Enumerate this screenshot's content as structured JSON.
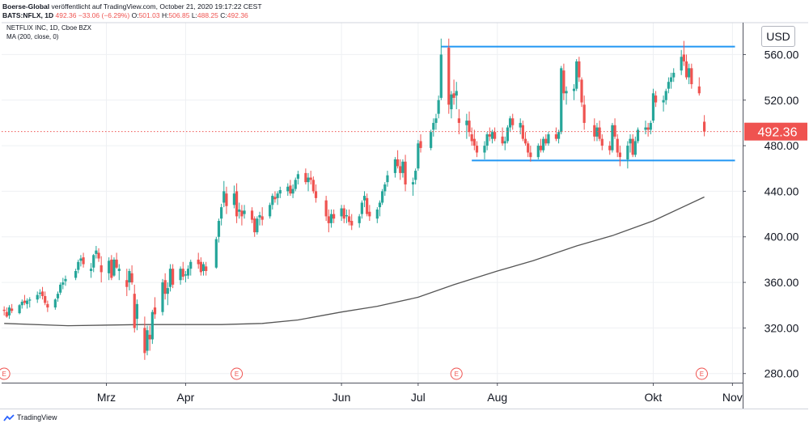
{
  "header": {
    "line1": "Boerse-Global veröffentlicht auf TradingView.com, October 21, 2020 19:17:22 CEST",
    "line1_user": "Boerse-Global",
    "line1_rest": " veröffentlicht auf TradingView.com, October 21, 2020 19:17:22 CEST",
    "symbol": "BATS:NFLX, 1D",
    "last": "492.36",
    "change": "−33.06 (−6.29%)",
    "o_label": "O:",
    "o_val": "501.03",
    "h_label": "H:",
    "h_val": "506.85",
    "l_label": "L:",
    "l_val": "488.25",
    "c_label": "C:",
    "c_val": "492.36"
  },
  "legend": {
    "series": "NETFLIX INC, 1D, Cboe BZX",
    "ma": "MA (200, close, 0)"
  },
  "currency": "USD",
  "footer": {
    "brand": "TradingView"
  },
  "colors": {
    "up": "#26a69a",
    "down": "#ef5350",
    "ma": "#555555",
    "line": "#2196f3",
    "grid": "#eef0f3"
  },
  "chart_data": {
    "type": "candlestick",
    "y_ticks": [
      "560.00",
      "520.00",
      "480.00",
      "440.00",
      "400.00",
      "360.00",
      "320.00",
      "280.00"
    ],
    "y_tick_values": [
      560,
      520,
      480,
      440,
      400,
      360,
      320,
      280
    ],
    "ylim": [
      272,
      588
    ],
    "x_labels": [
      "Mrz",
      "Apr",
      "Jun",
      "Jul",
      "Aug",
      "Okt",
      "Nov"
    ],
    "x_label_dates": [
      "2020-03-01",
      "2020-04-01",
      "2020-06-01",
      "2020-07-01",
      "2020-08-01",
      "2020-10-01",
      "2020-11-01"
    ],
    "xlim": [
      "2020-01-20",
      "2020-11-05"
    ],
    "last_price": 492.36,
    "last_price_label": "492.36",
    "resistance": {
      "value": 567,
      "from": "2020-07-10",
      "to": "2020-11-02"
    },
    "support": {
      "value": 467,
      "from": "2020-07-22",
      "to": "2020-11-02"
    },
    "earnings_markers": {
      "label": "E",
      "dates": [
        "2020-01-21",
        "2020-04-21",
        "2020-07-16",
        "2020-10-20"
      ]
    },
    "candles_ohlc": [
      [
        "2020-01-21",
        336,
        339,
        331,
        335
      ],
      [
        "2020-01-22",
        334,
        338,
        329,
        330
      ],
      [
        "2020-01-23",
        331,
        340,
        328,
        338
      ],
      [
        "2020-01-24",
        337,
        341,
        333,
        335
      ],
      [
        "2020-01-27",
        333,
        341,
        332,
        340
      ],
      [
        "2020-01-28",
        340,
        345,
        337,
        343
      ],
      [
        "2020-01-29",
        344,
        349,
        340,
        342
      ],
      [
        "2020-01-30",
        341,
        346,
        337,
        344
      ],
      [
        "2020-01-31",
        344,
        347,
        338,
        345
      ],
      [
        "2020-02-03",
        345,
        352,
        342,
        349
      ],
      [
        "2020-02-04",
        350,
        354,
        346,
        351
      ],
      [
        "2020-02-05",
        352,
        356,
        345,
        348
      ],
      [
        "2020-02-06",
        348,
        352,
        340,
        342
      ],
      [
        "2020-02-07",
        341,
        344,
        334,
        338
      ],
      [
        "2020-02-10",
        338,
        346,
        336,
        345
      ],
      [
        "2020-02-11",
        346,
        352,
        343,
        350
      ],
      [
        "2020-02-12",
        351,
        360,
        349,
        358
      ],
      [
        "2020-02-13",
        358,
        364,
        354,
        360
      ],
      [
        "2020-02-14",
        361,
        366,
        357,
        363
      ],
      [
        "2020-02-18",
        364,
        372,
        362,
        370
      ],
      [
        "2020-02-19",
        371,
        380,
        368,
        378
      ],
      [
        "2020-02-20",
        379,
        384,
        374,
        381
      ],
      [
        "2020-02-21",
        382,
        386,
        373,
        376
      ],
      [
        "2020-02-24",
        370,
        377,
        364,
        372
      ],
      [
        "2020-02-25",
        373,
        385,
        369,
        384
      ],
      [
        "2020-02-26",
        385,
        392,
        381,
        388
      ],
      [
        "2020-02-27",
        386,
        390,
        378,
        381
      ],
      [
        "2020-02-28",
        375,
        383,
        360,
        369
      ],
      [
        "2020-03-02",
        368,
        382,
        362,
        379
      ],
      [
        "2020-03-03",
        380,
        384,
        362,
        364
      ],
      [
        "2020-03-04",
        366,
        382,
        365,
        380
      ],
      [
        "2020-03-05",
        380,
        386,
        372,
        373
      ],
      [
        "2020-03-06",
        370,
        376,
        362,
        372
      ],
      [
        "2020-03-09",
        362,
        372,
        348,
        356
      ],
      [
        "2020-03-10",
        360,
        372,
        353,
        370
      ],
      [
        "2020-03-11",
        368,
        375,
        358,
        360
      ],
      [
        "2020-03-12",
        350,
        358,
        316,
        320
      ],
      [
        "2020-03-13",
        328,
        345,
        318,
        341
      ],
      [
        "2020-03-16",
        320,
        330,
        292,
        298
      ],
      [
        "2020-03-17",
        300,
        322,
        296,
        318
      ],
      [
        "2020-03-18",
        314,
        322,
        300,
        310
      ],
      [
        "2020-03-19",
        310,
        336,
        306,
        334
      ],
      [
        "2020-03-20",
        338,
        347,
        328,
        332
      ],
      [
        "2020-03-23",
        334,
        363,
        331,
        360
      ],
      [
        "2020-03-24",
        362,
        368,
        345,
        350
      ],
      [
        "2020-03-25",
        350,
        360,
        340,
        355
      ],
      [
        "2020-03-26",
        356,
        376,
        352,
        372
      ],
      [
        "2020-03-27",
        372,
        376,
        355,
        358
      ],
      [
        "2020-03-30",
        362,
        374,
        358,
        372
      ],
      [
        "2020-03-31",
        372,
        378,
        362,
        365
      ],
      [
        "2020-04-01",
        366,
        370,
        360,
        367
      ],
      [
        "2020-04-02",
        366,
        375,
        363,
        372
      ],
      [
        "2020-04-03",
        372,
        380,
        366,
        378
      ],
      [
        "2020-04-06",
        380,
        386,
        372,
        376
      ],
      [
        "2020-04-07",
        378,
        382,
        366,
        369
      ],
      [
        "2020-04-08",
        370,
        378,
        366,
        376
      ],
      [
        "2020-04-09",
        374,
        378,
        366,
        370
      ],
      [
        "2020-04-13",
        373,
        400,
        372,
        398
      ],
      [
        "2020-04-14",
        400,
        416,
        395,
        414
      ],
      [
        "2020-04-15",
        416,
        429,
        410,
        426
      ],
      [
        "2020-04-16",
        430,
        449,
        426,
        440
      ],
      [
        "2020-04-17",
        438,
        444,
        420,
        427
      ],
      [
        "2020-04-20",
        428,
        445,
        425,
        438
      ],
      [
        "2020-04-21",
        440,
        447,
        412,
        418
      ],
      [
        "2020-04-22",
        422,
        430,
        416,
        424
      ],
      [
        "2020-04-23",
        423,
        428,
        410,
        418
      ],
      [
        "2020-04-24",
        420,
        428,
        416,
        423
      ],
      [
        "2020-04-27",
        423,
        426,
        412,
        415
      ],
      [
        "2020-04-28",
        416,
        418,
        400,
        404
      ],
      [
        "2020-04-29",
        404,
        418,
        402,
        416
      ],
      [
        "2020-04-30",
        417,
        422,
        410,
        419
      ],
      [
        "2020-05-01",
        418,
        426,
        410,
        415
      ],
      [
        "2020-05-04",
        418,
        430,
        416,
        428
      ],
      [
        "2020-05-05",
        428,
        438,
        424,
        436
      ],
      [
        "2020-05-06",
        435,
        440,
        430,
        433
      ],
      [
        "2020-05-07",
        434,
        440,
        428,
        438
      ],
      [
        "2020-05-08",
        438,
        444,
        434,
        441
      ],
      [
        "2020-05-11",
        440,
        447,
        436,
        444
      ],
      [
        "2020-05-12",
        445,
        450,
        436,
        438
      ],
      [
        "2020-05-13",
        438,
        446,
        434,
        442
      ],
      [
        "2020-05-14",
        442,
        452,
        440,
        450
      ],
      [
        "2020-05-15",
        451,
        458,
        446,
        455
      ],
      [
        "2020-05-18",
        456,
        460,
        446,
        448
      ],
      [
        "2020-05-19",
        448,
        456,
        440,
        452
      ],
      [
        "2020-05-20",
        452,
        458,
        446,
        450
      ],
      [
        "2020-05-21",
        450,
        453,
        438,
        440
      ],
      [
        "2020-05-22",
        440,
        446,
        430,
        434
      ],
      [
        "2020-05-26",
        432,
        436,
        414,
        418
      ],
      [
        "2020-05-27",
        418,
        424,
        404,
        412
      ],
      [
        "2020-05-28",
        412,
        424,
        408,
        420
      ],
      [
        "2020-05-29",
        420,
        424,
        412,
        416
      ],
      [
        "2020-06-01",
        418,
        428,
        414,
        425
      ],
      [
        "2020-06-02",
        425,
        428,
        412,
        416
      ],
      [
        "2020-06-03",
        418,
        424,
        412,
        419
      ],
      [
        "2020-06-04",
        418,
        424,
        410,
        413
      ],
      [
        "2020-06-05",
        414,
        420,
        406,
        410
      ],
      [
        "2020-06-08",
        412,
        420,
        408,
        418
      ],
      [
        "2020-06-09",
        420,
        432,
        416,
        430
      ],
      [
        "2020-06-10",
        432,
        440,
        426,
        436
      ],
      [
        "2020-06-11",
        434,
        438,
        418,
        420
      ],
      [
        "2020-06-12",
        422,
        428,
        414,
        418
      ],
      [
        "2020-06-15",
        416,
        426,
        412,
        424
      ],
      [
        "2020-06-16",
        426,
        432,
        418,
        430
      ],
      [
        "2020-06-17",
        430,
        442,
        428,
        440
      ],
      [
        "2020-06-18",
        440,
        448,
        436,
        446
      ],
      [
        "2020-06-19",
        448,
        458,
        444,
        454
      ],
      [
        "2020-06-22",
        456,
        470,
        452,
        468
      ],
      [
        "2020-06-23",
        468,
        476,
        460,
        462
      ],
      [
        "2020-06-24",
        462,
        468,
        450,
        456
      ],
      [
        "2020-06-25",
        456,
        468,
        452,
        466
      ],
      [
        "2020-06-26",
        466,
        472,
        440,
        446
      ],
      [
        "2020-06-29",
        446,
        452,
        436,
        448
      ],
      [
        "2020-06-30",
        450,
        460,
        446,
        458
      ],
      [
        "2020-07-01",
        460,
        485,
        458,
        482
      ],
      [
        "2020-07-02",
        484,
        490,
        474,
        478
      ],
      [
        "2020-07-06",
        478,
        494,
        476,
        492
      ],
      [
        "2020-07-07",
        494,
        504,
        488,
        500
      ],
      [
        "2020-07-08",
        500,
        508,
        494,
        504
      ],
      [
        "2020-07-09",
        508,
        524,
        504,
        520
      ],
      [
        "2020-07-10",
        522,
        574,
        520,
        560
      ],
      [
        "2020-07-13",
        566,
        574,
        508,
        516
      ],
      [
        "2020-07-14",
        512,
        528,
        504,
        525
      ],
      [
        "2020-07-15",
        526,
        538,
        516,
        522
      ],
      [
        "2020-07-16",
        524,
        536,
        512,
        528
      ],
      [
        "2020-07-17",
        504,
        512,
        490,
        500
      ],
      [
        "2020-07-20",
        498,
        508,
        486,
        502
      ],
      [
        "2020-07-21",
        502,
        510,
        488,
        492
      ],
      [
        "2020-07-22",
        490,
        496,
        480,
        484
      ],
      [
        "2020-07-23",
        486,
        494,
        476,
        480
      ],
      [
        "2020-07-24",
        480,
        484,
        470,
        474
      ],
      [
        "2020-07-27",
        474,
        484,
        468,
        480
      ],
      [
        "2020-07-28",
        480,
        492,
        476,
        490
      ],
      [
        "2020-07-29",
        490,
        496,
        484,
        488
      ],
      [
        "2020-07-30",
        486,
        494,
        482,
        492
      ],
      [
        "2020-07-31",
        492,
        496,
        484,
        486
      ],
      [
        "2020-08-03",
        488,
        496,
        480,
        482
      ],
      [
        "2020-08-04",
        482,
        488,
        476,
        484
      ],
      [
        "2020-08-05",
        484,
        498,
        482,
        496
      ],
      [
        "2020-08-06",
        496,
        506,
        492,
        504
      ],
      [
        "2020-08-07",
        504,
        508,
        494,
        498
      ],
      [
        "2020-08-10",
        496,
        504,
        490,
        500
      ],
      [
        "2020-08-11",
        498,
        502,
        484,
        486
      ],
      [
        "2020-08-12",
        486,
        492,
        480,
        482
      ],
      [
        "2020-08-13",
        482,
        484,
        470,
        474
      ],
      [
        "2020-08-14",
        474,
        480,
        466,
        470
      ],
      [
        "2020-08-17",
        470,
        482,
        468,
        480
      ],
      [
        "2020-08-18",
        480,
        486,
        474,
        476
      ],
      [
        "2020-08-19",
        476,
        488,
        474,
        486
      ],
      [
        "2020-08-20",
        486,
        490,
        480,
        482
      ],
      [
        "2020-08-21",
        482,
        492,
        480,
        490
      ],
      [
        "2020-08-24",
        490,
        496,
        484,
        486
      ],
      [
        "2020-08-25",
        486,
        494,
        482,
        492
      ],
      [
        "2020-08-26",
        492,
        550,
        490,
        548
      ],
      [
        "2020-08-27",
        546,
        552,
        520,
        526
      ],
      [
        "2020-08-28",
        526,
        532,
        516,
        528
      ],
      [
        "2020-08-31",
        528,
        534,
        520,
        530
      ],
      [
        "2020-09-01",
        530,
        556,
        528,
        554
      ],
      [
        "2020-09-02",
        554,
        558,
        536,
        540
      ],
      [
        "2020-09-03",
        538,
        540,
        514,
        518
      ],
      [
        "2020-09-04",
        516,
        524,
        494,
        500
      ],
      [
        "2020-09-08",
        498,
        504,
        484,
        488
      ],
      [
        "2020-09-09",
        488,
        500,
        484,
        496
      ],
      [
        "2020-09-10",
        496,
        502,
        484,
        486
      ],
      [
        "2020-09-11",
        486,
        490,
        476,
        480
      ],
      [
        "2020-09-14",
        480,
        484,
        472,
        476
      ],
      [
        "2020-09-15",
        476,
        500,
        474,
        498
      ],
      [
        "2020-09-16",
        498,
        504,
        486,
        488
      ],
      [
        "2020-09-17",
        486,
        490,
        470,
        474
      ],
      [
        "2020-09-18",
        474,
        480,
        462,
        470
      ],
      [
        "2020-09-21",
        468,
        484,
        460,
        480
      ],
      [
        "2020-09-22",
        482,
        490,
        474,
        486
      ],
      [
        "2020-09-23",
        486,
        490,
        470,
        472
      ],
      [
        "2020-09-24",
        472,
        488,
        470,
        484
      ],
      [
        "2020-09-25",
        484,
        496,
        482,
        494
      ],
      [
        "2020-09-28",
        494,
        502,
        490,
        496
      ],
      [
        "2020-09-29",
        496,
        500,
        488,
        494
      ],
      [
        "2020-09-30",
        494,
        502,
        490,
        500
      ],
      [
        "2020-10-01",
        502,
        530,
        500,
        526
      ],
      [
        "2020-10-02",
        524,
        528,
        514,
        518
      ],
      [
        "2020-10-05",
        518,
        524,
        510,
        520
      ],
      [
        "2020-10-06",
        520,
        530,
        516,
        528
      ],
      [
        "2020-10-07",
        530,
        540,
        526,
        536
      ],
      [
        "2020-10-08",
        536,
        544,
        530,
        540
      ],
      [
        "2020-10-09",
        540,
        548,
        536,
        544
      ],
      [
        "2020-10-12",
        546,
        564,
        542,
        558
      ],
      [
        "2020-10-13",
        560,
        572,
        550,
        554
      ],
      [
        "2020-10-14",
        554,
        560,
        538,
        540
      ],
      [
        "2020-10-15",
        540,
        552,
        534,
        548
      ],
      [
        "2020-10-16",
        548,
        552,
        530,
        534
      ],
      [
        "2020-10-19",
        532,
        540,
        524,
        526
      ],
      [
        "2020-10-21",
        501.03,
        506.85,
        488.25,
        492.36
      ]
    ],
    "ma_points": [
      [
        "2020-01-21",
        324
      ],
      [
        "2020-02-15",
        322
      ],
      [
        "2020-03-15",
        323
      ],
      [
        "2020-04-15",
        323
      ],
      [
        "2020-05-01",
        324
      ],
      [
        "2020-05-15",
        327
      ],
      [
        "2020-06-01",
        334
      ],
      [
        "2020-06-15",
        339
      ],
      [
        "2020-07-01",
        347
      ],
      [
        "2020-07-15",
        358
      ],
      [
        "2020-08-01",
        370
      ],
      [
        "2020-08-15",
        379
      ],
      [
        "2020-09-01",
        392
      ],
      [
        "2020-09-15",
        401
      ],
      [
        "2020-10-01",
        414
      ],
      [
        "2020-10-21",
        435
      ]
    ]
  }
}
